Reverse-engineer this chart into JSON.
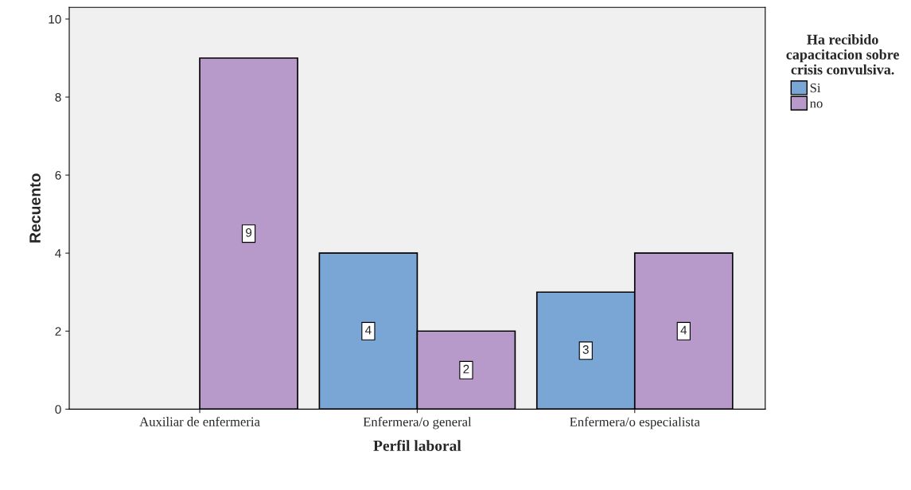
{
  "chart_data": {
    "type": "bar",
    "xlabel": "Perfil laboral",
    "ylabel": "Recuento",
    "categories": [
      "Auxiliar de enfermeria",
      "Enfermera/o general",
      "Enfermera/o especialista"
    ],
    "series": [
      {
        "name": "Si",
        "color": "#7aa6d6",
        "values": [
          null,
          4,
          3
        ]
      },
      {
        "name": "no",
        "color": "#b89aca",
        "values": [
          9,
          2,
          4
        ]
      }
    ],
    "legend_title": "Ha recibido capacitacion sobre crisis convulsiva.",
    "legend": "right",
    "ylim": [
      0,
      10.3
    ],
    "yticks": [
      0,
      2,
      4,
      6,
      8,
      10
    ],
    "grid": false,
    "data_labels": true
  }
}
